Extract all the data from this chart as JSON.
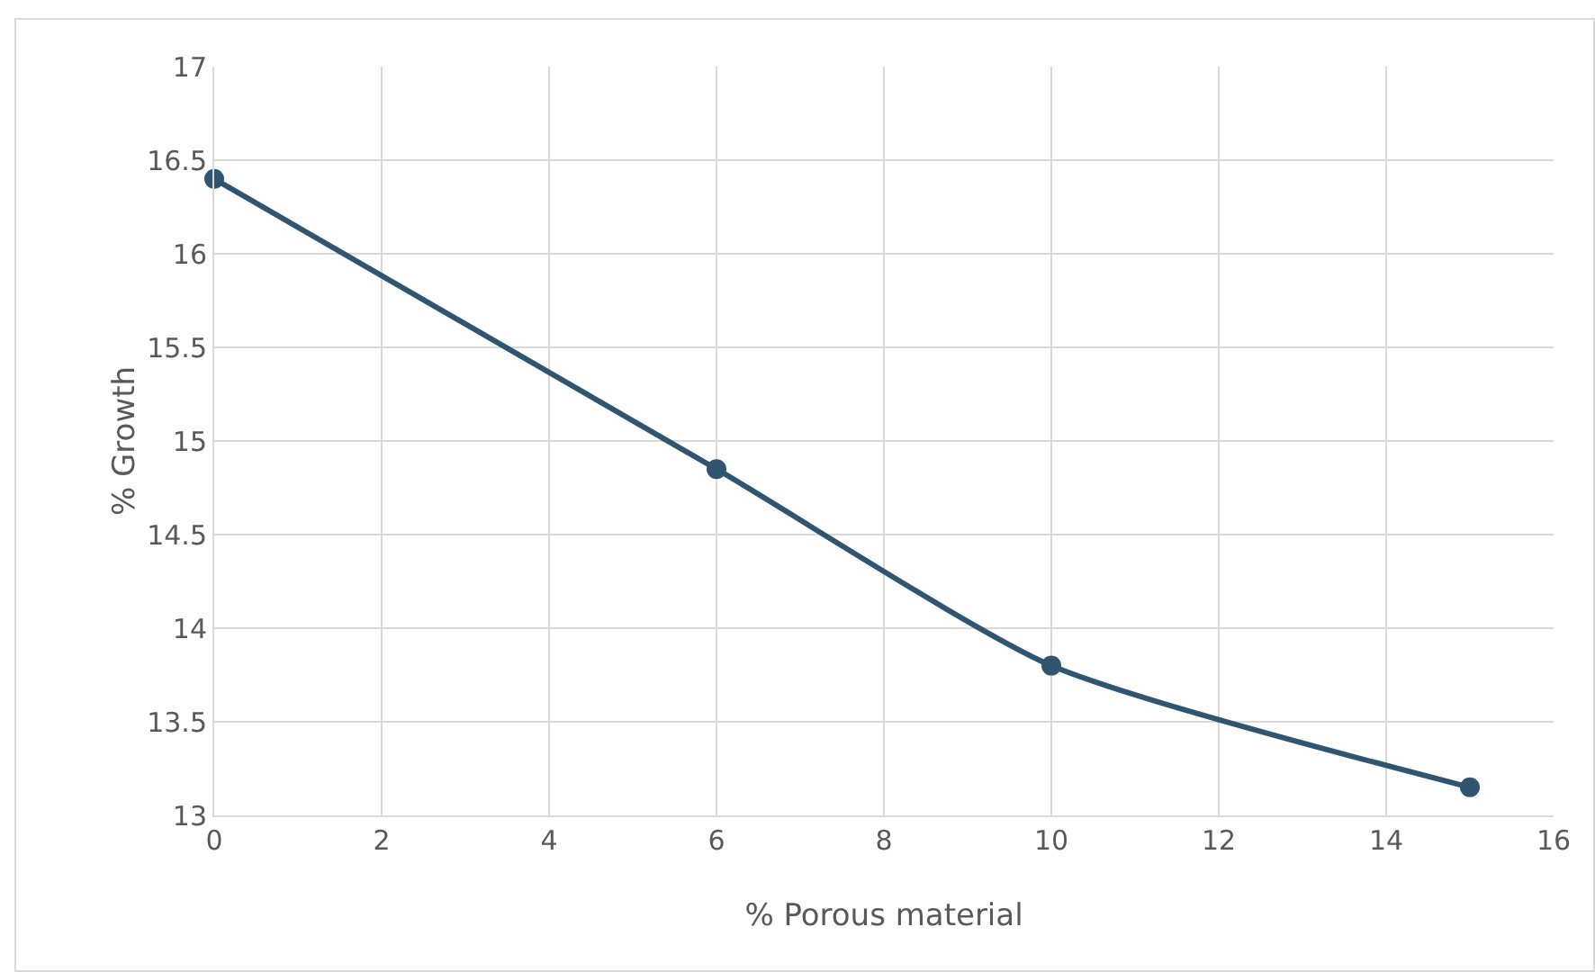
{
  "chart_data": {
    "type": "line",
    "xlabel": "% Porous material",
    "ylabel": "% Growth",
    "x": [
      0,
      6,
      10,
      15
    ],
    "series": [
      {
        "color": "#2f5570",
        "values": [
          16.4,
          14.85,
          13.8,
          13.15
        ]
      }
    ],
    "xlim": [
      0,
      16
    ],
    "xticks": [
      0,
      2,
      4,
      6,
      8,
      10,
      12,
      14,
      16
    ],
    "ylim": [
      13,
      17
    ],
    "yticks": [
      13,
      13.5,
      14,
      14.5,
      15,
      15.5,
      16,
      16.5,
      17
    ],
    "grid": true,
    "marker": "circle",
    "line_style": "solid",
    "legend": false
  }
}
